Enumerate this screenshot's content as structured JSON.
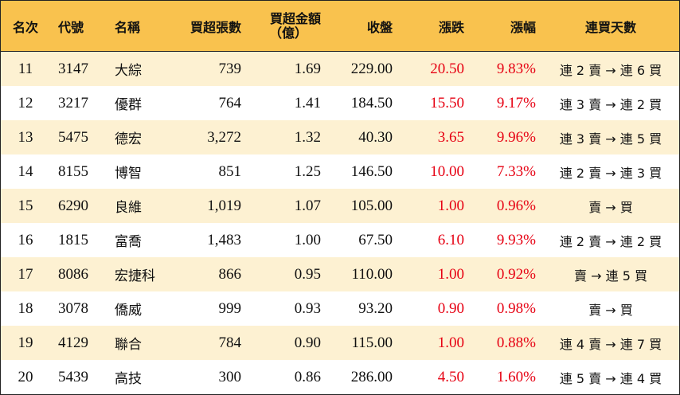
{
  "headers": {
    "rank": "名次",
    "code": "代號",
    "name": "名稱",
    "net_buy_shares": "買超張數",
    "net_buy_amount_line1": "買超金額",
    "net_buy_amount_line2": "（億）",
    "close": "收盤",
    "change": "漲跌",
    "change_pct": "漲幅",
    "consecutive_days": "連買天數"
  },
  "rows": [
    {
      "rank": "11",
      "code": "3147",
      "name": "大綜",
      "shares": "739",
      "amount": "1.69",
      "close": "229.00",
      "change": "20.50",
      "pct": "9.83%",
      "days": "連 2 賣 → 連 6 買"
    },
    {
      "rank": "12",
      "code": "3217",
      "name": "優群",
      "shares": "764",
      "amount": "1.41",
      "close": "184.50",
      "change": "15.50",
      "pct": "9.17%",
      "days": "連 3 賣 → 連 2 買"
    },
    {
      "rank": "13",
      "code": "5475",
      "name": "德宏",
      "shares": "3,272",
      "amount": "1.32",
      "close": "40.30",
      "change": "3.65",
      "pct": "9.96%",
      "days": "連 3 賣 → 連 5 買"
    },
    {
      "rank": "14",
      "code": "8155",
      "name": "博智",
      "shares": "851",
      "amount": "1.25",
      "close": "146.50",
      "change": "10.00",
      "pct": "7.33%",
      "days": "連 2 賣 → 連 3 買"
    },
    {
      "rank": "15",
      "code": "6290",
      "name": "良維",
      "shares": "1,019",
      "amount": "1.07",
      "close": "105.00",
      "change": "1.00",
      "pct": "0.96%",
      "days": "賣 → 買"
    },
    {
      "rank": "16",
      "code": "1815",
      "name": "富喬",
      "shares": "1,483",
      "amount": "1.00",
      "close": "67.50",
      "change": "6.10",
      "pct": "9.93%",
      "days": "連 2 賣 → 連 2 買"
    },
    {
      "rank": "17",
      "code": "8086",
      "name": "宏捷科",
      "shares": "866",
      "amount": "0.95",
      "close": "110.00",
      "change": "1.00",
      "pct": "0.92%",
      "days": "賣 → 連 5 買"
    },
    {
      "rank": "18",
      "code": "3078",
      "name": "僑威",
      "shares": "999",
      "amount": "0.93",
      "close": "93.20",
      "change": "0.90",
      "pct": "0.98%",
      "days": "賣 → 買"
    },
    {
      "rank": "19",
      "code": "4129",
      "name": "聯合",
      "shares": "784",
      "amount": "0.90",
      "close": "115.00",
      "change": "1.00",
      "pct": "0.88%",
      "days": "連 4 賣 → 連 7 買"
    },
    {
      "rank": "20",
      "code": "5439",
      "name": "高技",
      "shares": "300",
      "amount": "0.86",
      "close": "286.00",
      "change": "4.50",
      "pct": "1.60%",
      "days": "連 5 賣 → 連 4 買"
    }
  ],
  "colors": {
    "header_bg": "#f9c24e",
    "stripe_bg": "#fdf1d2",
    "up_red": "#e60012"
  }
}
